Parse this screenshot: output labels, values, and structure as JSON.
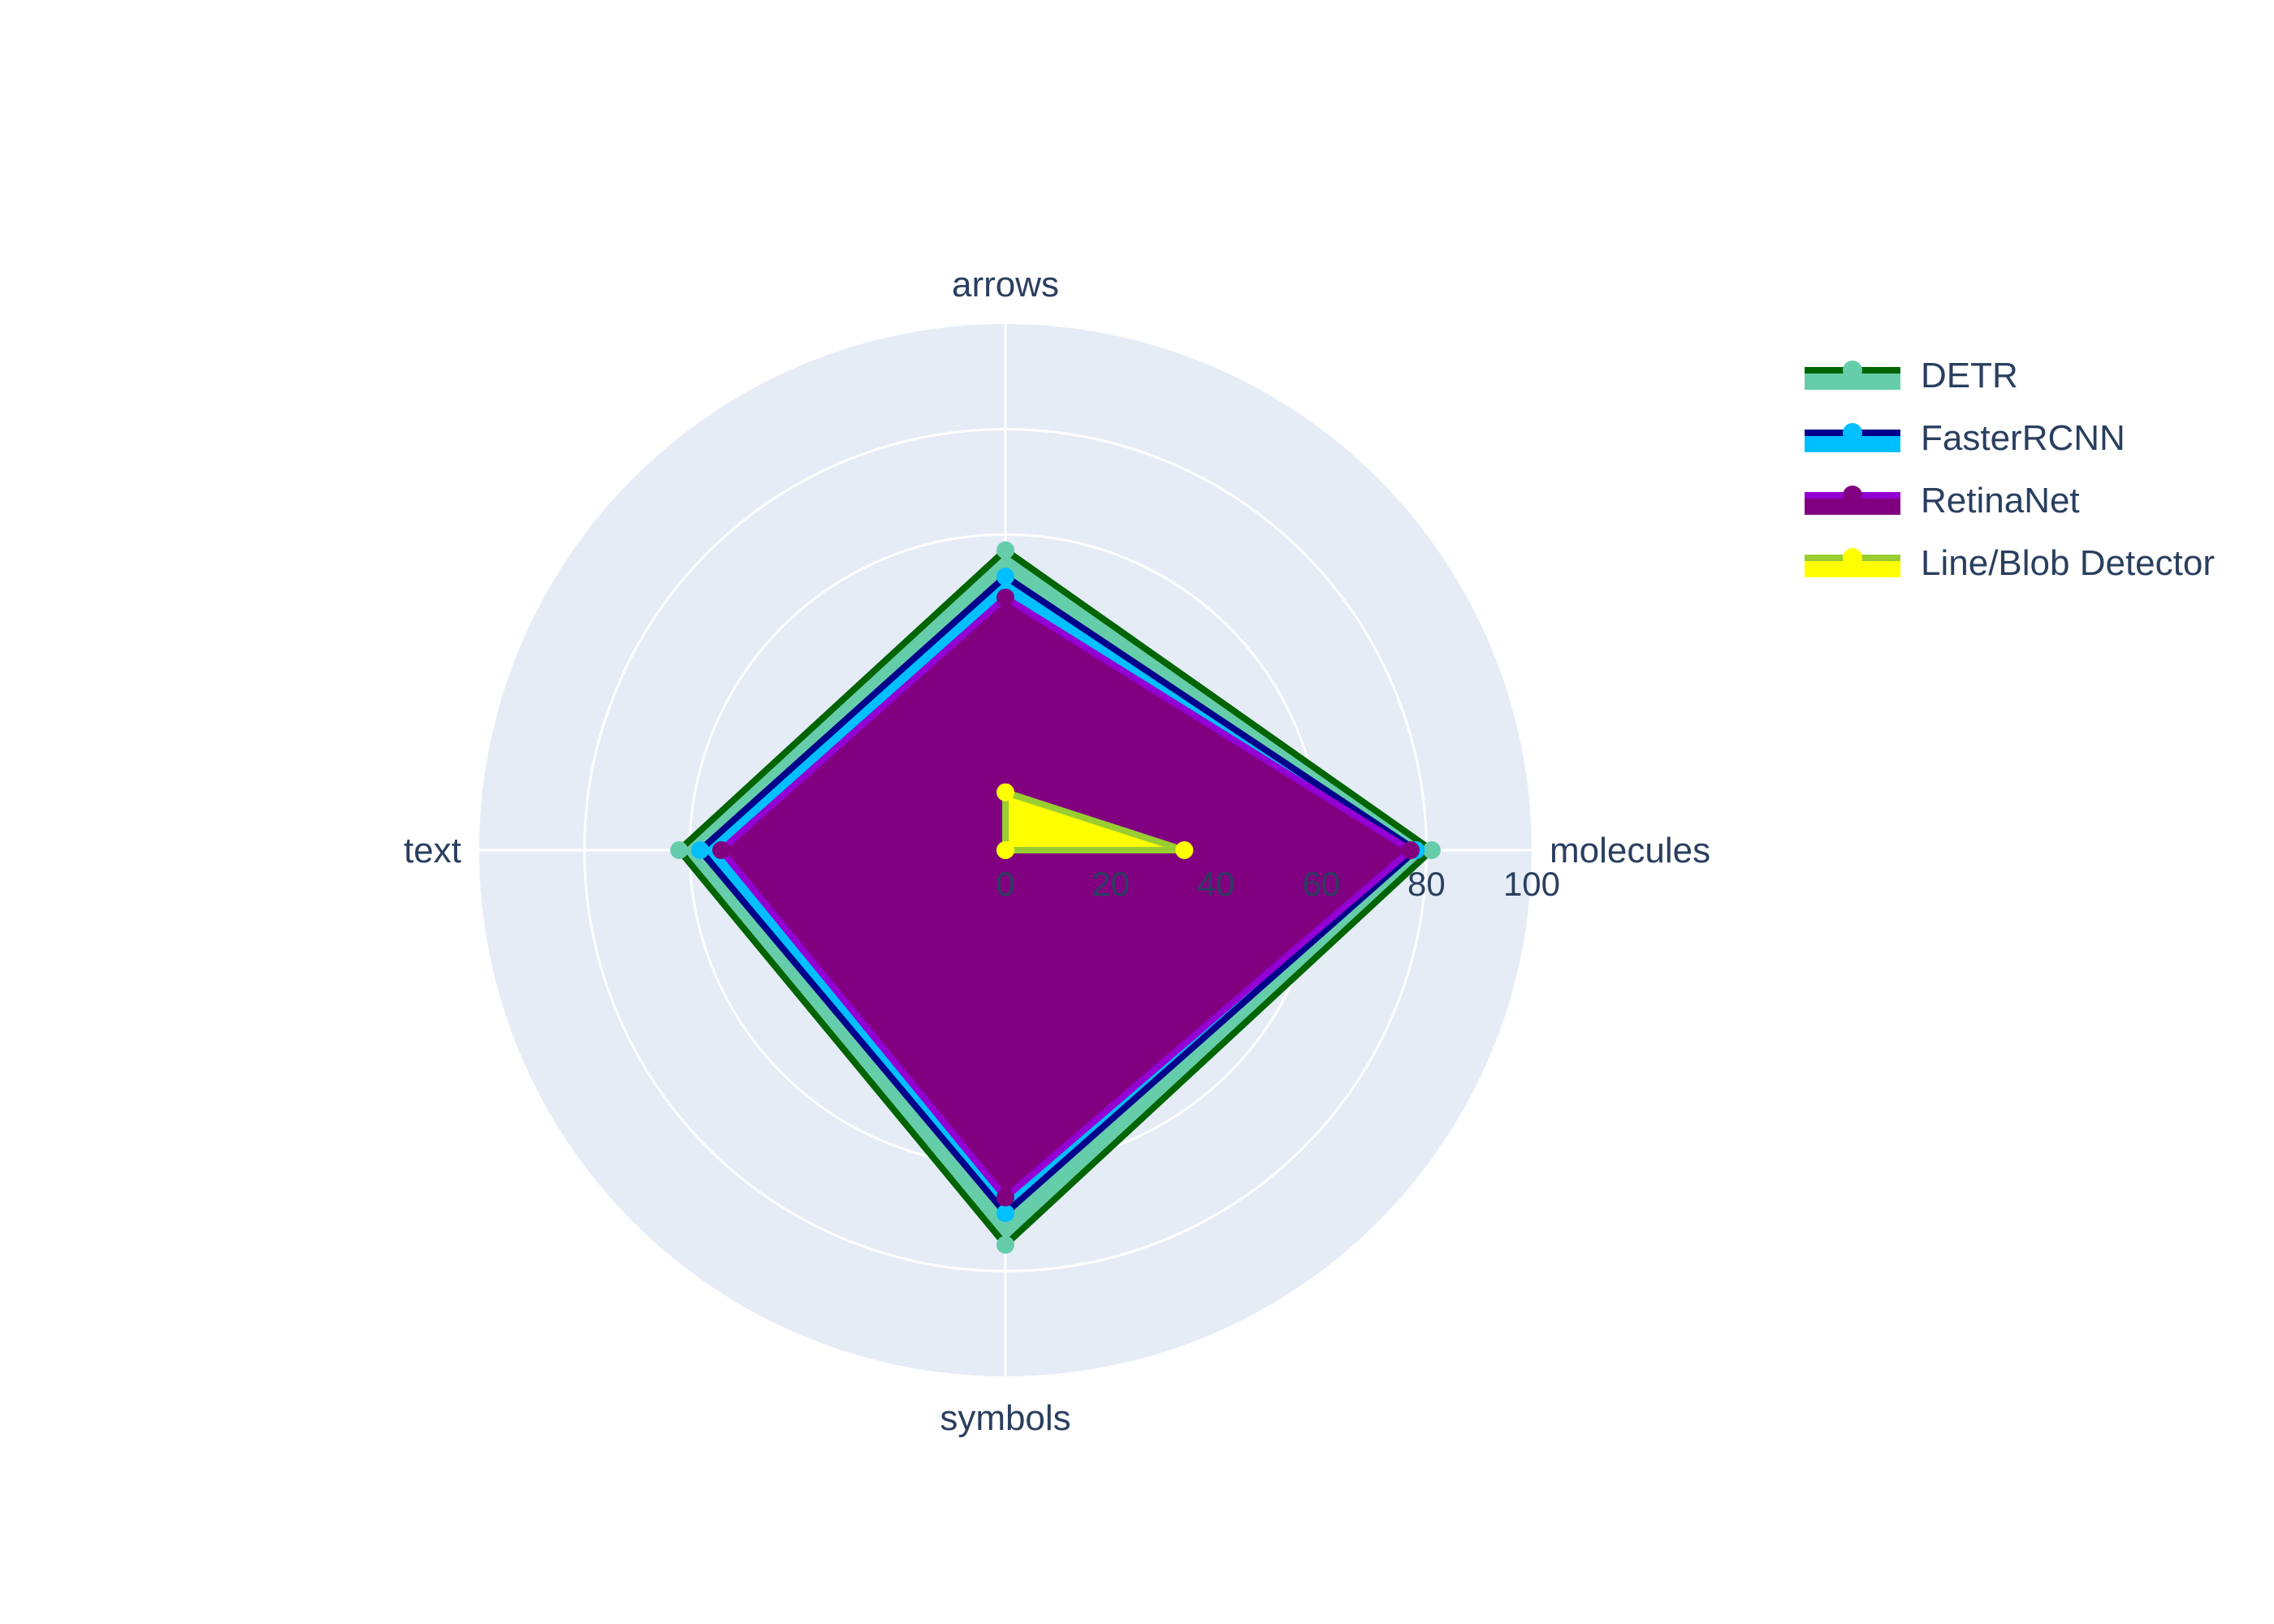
{
  "chart_data": {
    "type": "radar",
    "title": "",
    "categories": [
      "molecules",
      "arrows",
      "text",
      "symbols"
    ],
    "radial_axis": {
      "range": [
        0,
        100
      ],
      "ticks": [
        "0",
        "20",
        "40",
        "60",
        "80",
        "100"
      ]
    },
    "grid": true,
    "legend_position": "top-right",
    "series": [
      {
        "name": "DETR",
        "values": [
          81,
          57,
          62,
          75
        ],
        "line_color": "#006400",
        "fill_color": "#66cdaa",
        "marker_color": "#66cdaa"
      },
      {
        "name": "FasterRCNN",
        "values": [
          78,
          52,
          58,
          69
        ],
        "line_color": "#00008b",
        "fill_color": "#00bfff",
        "marker_color": "#00bfff"
      },
      {
        "name": "RetinaNet",
        "values": [
          77,
          48,
          54,
          66
        ],
        "line_color": "#9400d3",
        "fill_color": "#800080",
        "marker_color": "#800080"
      },
      {
        "name": "Line/Blob Detector",
        "values": [
          34,
          11,
          0,
          0
        ],
        "line_color": "#9acd32",
        "fill_color": "#ffff00",
        "marker_color": "#ffff00"
      }
    ],
    "colors": {
      "polar_bg": "#e5ecf6",
      "grid": "#ffffff",
      "text": "#2a3f5f"
    }
  }
}
